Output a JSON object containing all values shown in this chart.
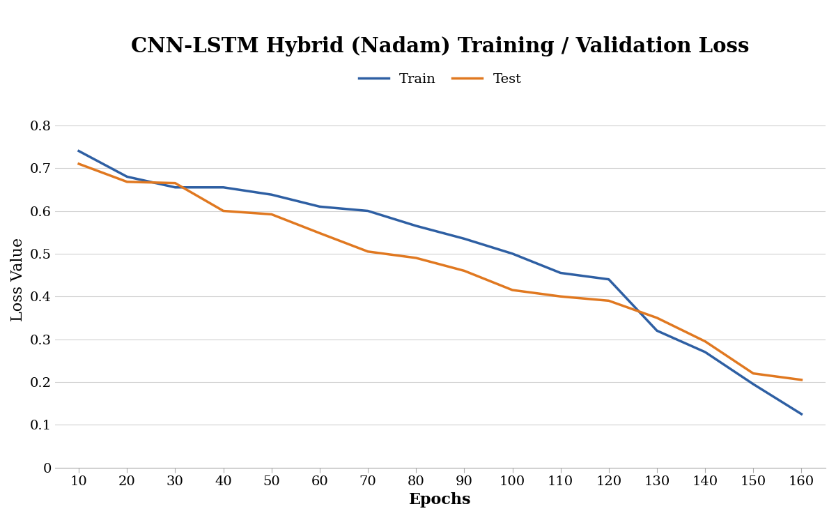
{
  "title": "CNN-LSTM Hybrid (Nadam) Training / Validation Loss",
  "xlabel": "Epochs",
  "ylabel": "Loss Value",
  "train_x": [
    10,
    20,
    30,
    40,
    50,
    60,
    70,
    80,
    90,
    100,
    110,
    120,
    130,
    140,
    150,
    160
  ],
  "train_y": [
    0.74,
    0.68,
    0.655,
    0.655,
    0.638,
    0.61,
    0.6,
    0.565,
    0.535,
    0.5,
    0.455,
    0.44,
    0.32,
    0.27,
    0.195,
    0.125
  ],
  "test_x": [
    10,
    20,
    30,
    40,
    50,
    60,
    70,
    80,
    90,
    100,
    110,
    120,
    130,
    140,
    150,
    160
  ],
  "test_y": [
    0.71,
    0.668,
    0.665,
    0.6,
    0.592,
    0.548,
    0.505,
    0.49,
    0.46,
    0.415,
    0.4,
    0.39,
    0.35,
    0.295,
    0.22,
    0.205
  ],
  "train_color": "#2E5FA3",
  "test_color": "#E07820",
  "line_width": 2.5,
  "title_fontsize": 21,
  "label_fontsize": 16,
  "tick_fontsize": 14,
  "legend_fontsize": 14,
  "xlim": [
    5,
    165
  ],
  "ylim": [
    0,
    0.88
  ],
  "xticks": [
    10,
    20,
    30,
    40,
    50,
    60,
    70,
    80,
    90,
    100,
    110,
    120,
    130,
    140,
    150,
    160
  ],
  "yticks": [
    0,
    0.1,
    0.2,
    0.3,
    0.4,
    0.5,
    0.6,
    0.7,
    0.8
  ],
  "ytick_labels": [
    "0",
    "0.1",
    "0.2",
    "0.3",
    "0.4",
    "0.5",
    "0.6",
    "0.7",
    "0.8"
  ],
  "grid_color": "#d0d0d0",
  "background_color": "#ffffff",
  "legend_labels": [
    "Train",
    "Test"
  ]
}
